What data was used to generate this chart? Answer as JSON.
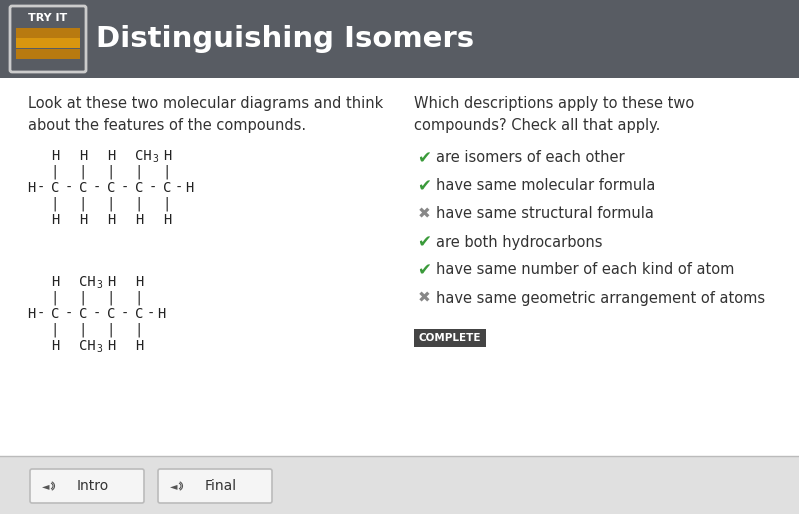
{
  "title": "Distinguishing Isomers",
  "header_bg": "#585c63",
  "header_text_color": "#ffffff",
  "body_bg": "#ffffff",
  "footer_bg": "#e0e0e0",
  "try_it_text": "TRY IT",
  "try_it_stripe_dark": "#b87a10",
  "try_it_stripe_light": "#d9960f",
  "left_instruction": "Look at these two molecular diagrams and think\nabout the features of the compounds.",
  "right_instruction": "Which descriptions apply to these two\ncompounds? Check all that apply.",
  "checklist": [
    {
      "icon": "check",
      "text": "are isomers of each other",
      "color": "#3a9a3a"
    },
    {
      "icon": "check",
      "text": "have same molecular formula",
      "color": "#3a9a3a"
    },
    {
      "icon": "x",
      "text": "have same structural formula",
      "color": "#888888"
    },
    {
      "icon": "check",
      "text": "are both hydrocarbons",
      "color": "#3a9a3a"
    },
    {
      "icon": "check",
      "text": "have same number of each kind of atom",
      "color": "#3a9a3a"
    },
    {
      "icon": "x",
      "text": "have same geometric arrangement of atoms",
      "color": "#888888"
    }
  ],
  "complete_btn_bg": "#444444",
  "complete_btn_text": "COMPLETE",
  "complete_btn_text_color": "#ffffff",
  "footer_btn1": "Intro",
  "footer_btn2": "Final"
}
